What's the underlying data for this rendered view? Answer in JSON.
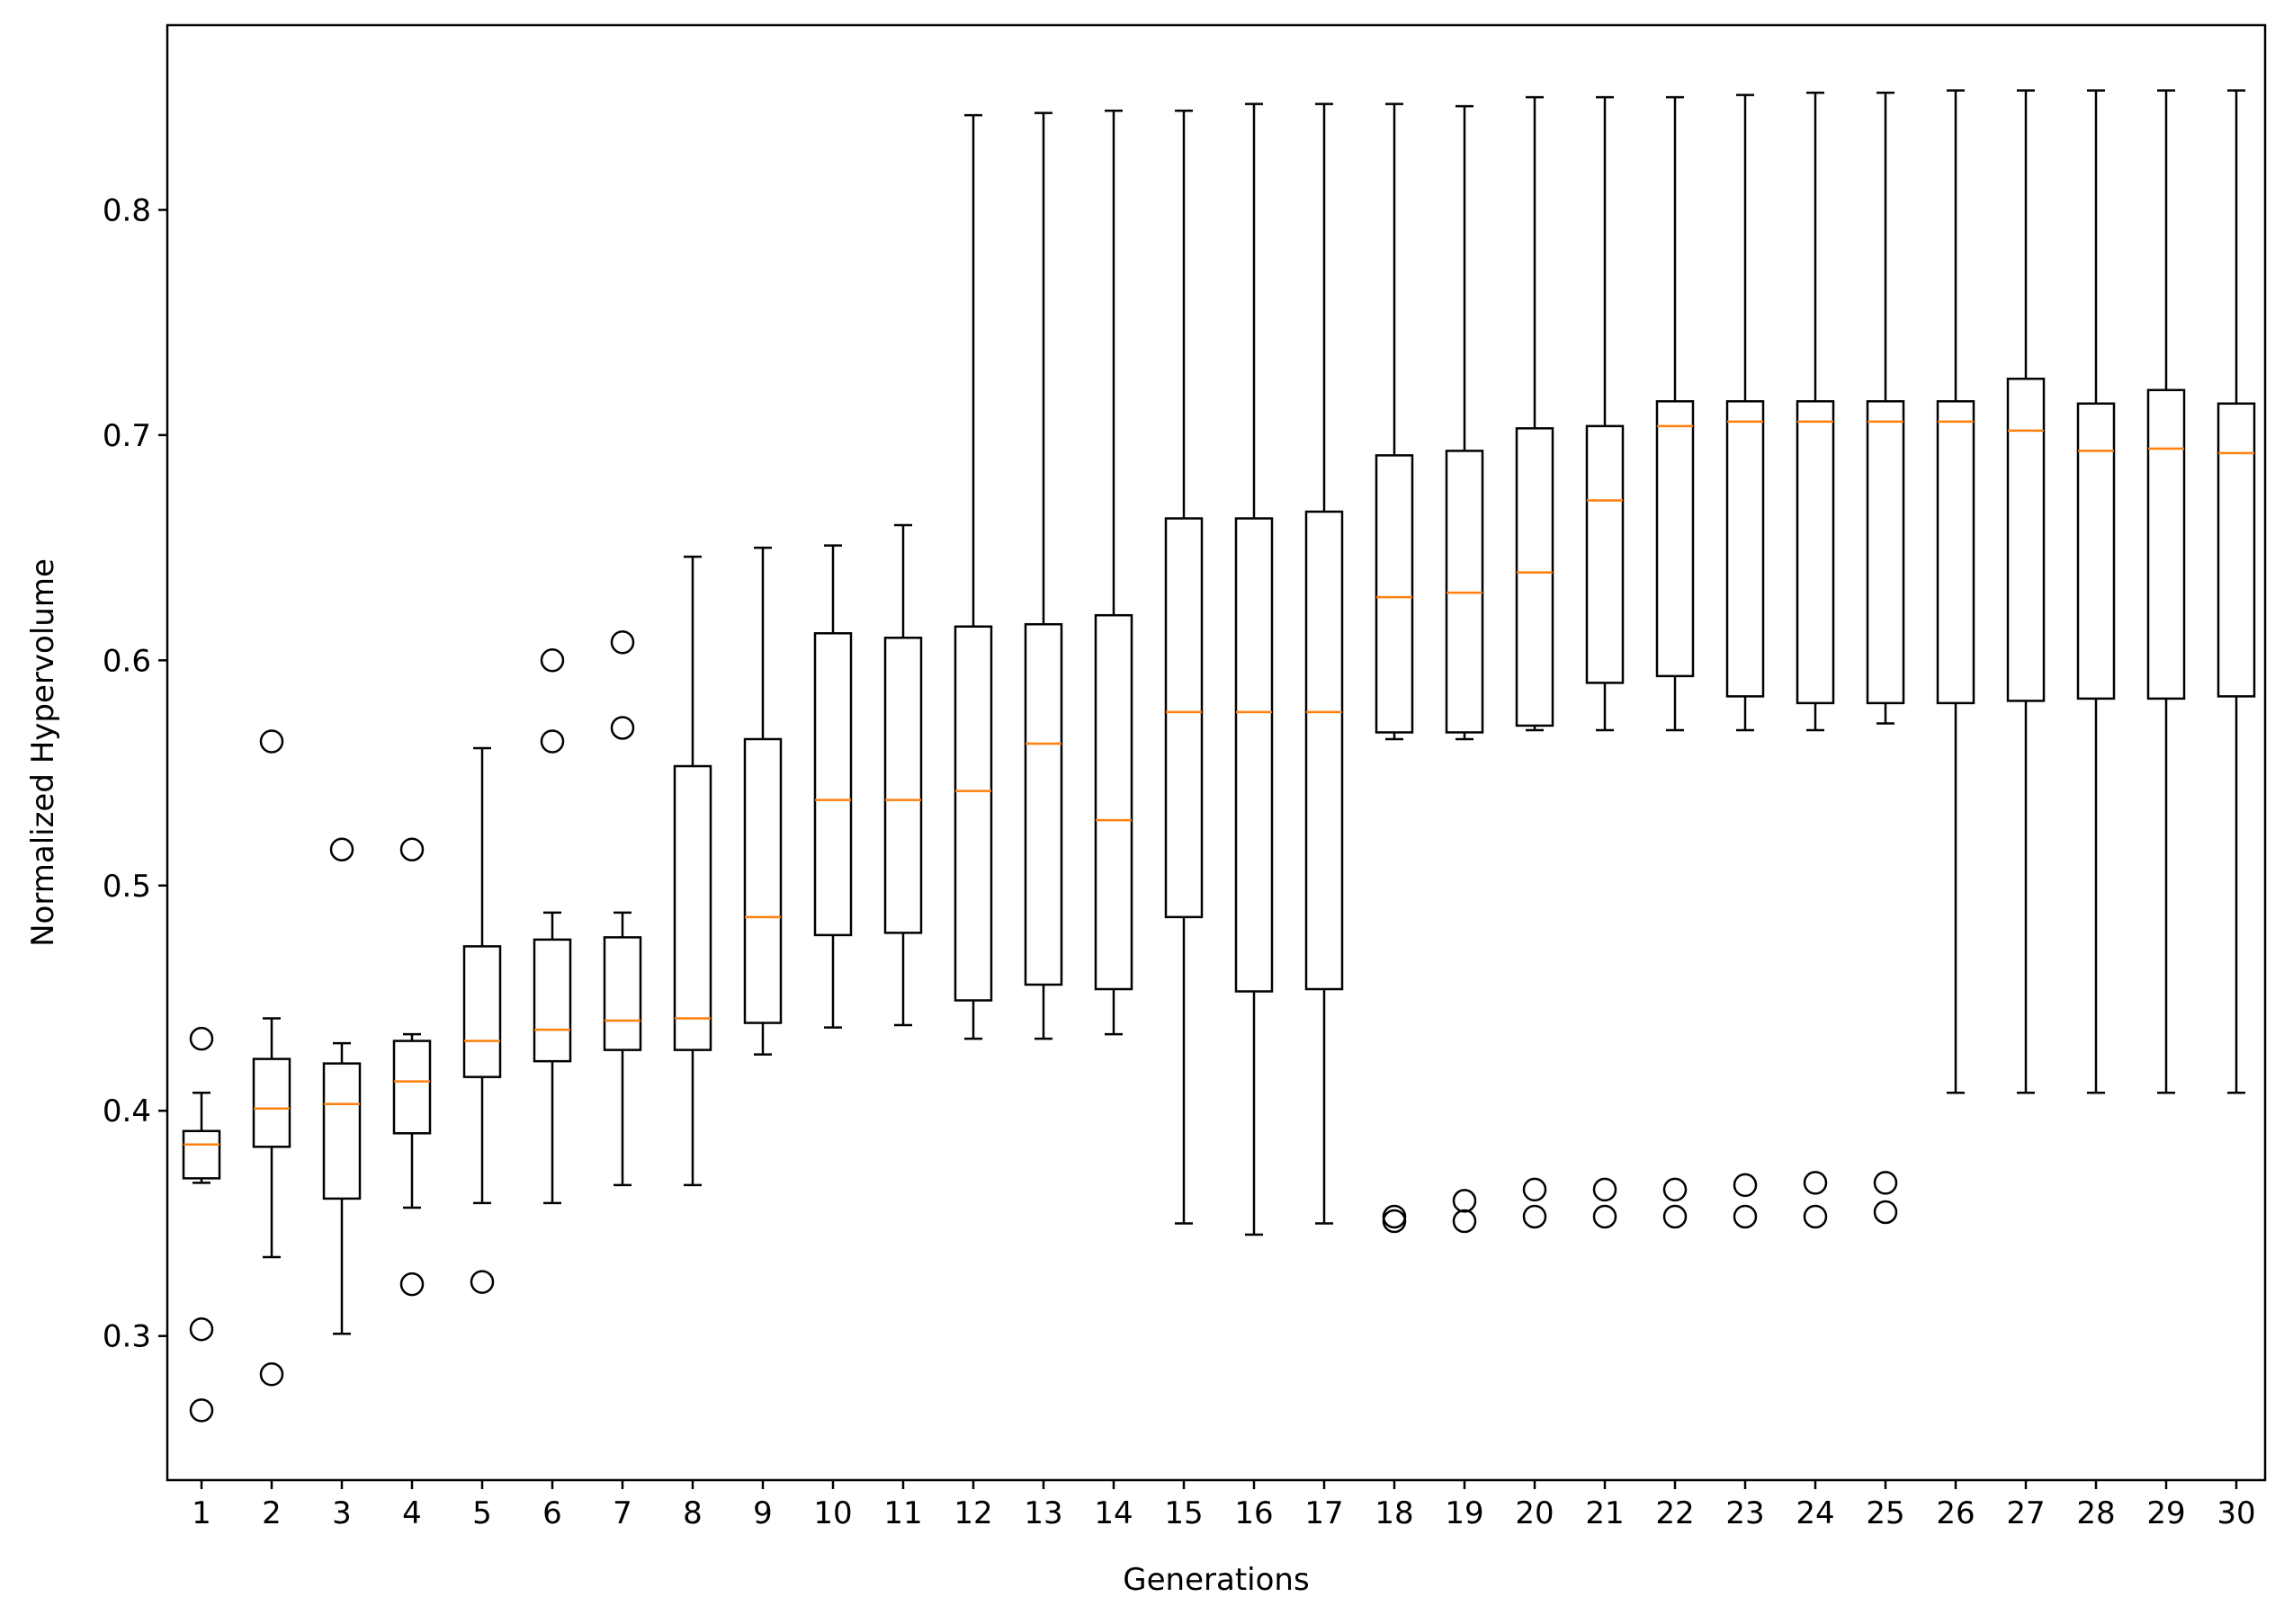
{
  "chart_data": {
    "type": "boxplot",
    "title": "",
    "xlabel": "Generations",
    "ylabel": "Normalized Hypervolume",
    "ylim": [
      0.236,
      0.882
    ],
    "y_ticks": [
      0.3,
      0.4,
      0.5,
      0.6,
      0.7,
      0.8
    ],
    "grid": false,
    "colors": {
      "box": "#000000",
      "median": "#ff7f0e",
      "background": "#ffffff"
    },
    "categories": [
      "1",
      "2",
      "3",
      "4",
      "5",
      "6",
      "7",
      "8",
      "9",
      "10",
      "11",
      "12",
      "13",
      "14",
      "15",
      "16",
      "17",
      "18",
      "19",
      "20",
      "21",
      "22",
      "23",
      "24",
      "25",
      "26",
      "27",
      "28",
      "29",
      "30"
    ],
    "boxes": [
      {
        "gen": "1",
        "whisker_low": 0.368,
        "q1": 0.37,
        "median": 0.385,
        "q3": 0.391,
        "whisker_high": 0.408,
        "outliers": [
          0.432,
          0.303,
          0.267
        ]
      },
      {
        "gen": "2",
        "whisker_low": 0.335,
        "q1": 0.384,
        "median": 0.401,
        "q3": 0.423,
        "whisker_high": 0.441,
        "outliers": [
          0.564,
          0.283
        ]
      },
      {
        "gen": "3",
        "whisker_low": 0.301,
        "q1": 0.361,
        "median": 0.403,
        "q3": 0.421,
        "whisker_high": 0.43,
        "outliers": [
          0.516
        ]
      },
      {
        "gen": "4",
        "whisker_low": 0.357,
        "q1": 0.39,
        "median": 0.413,
        "q3": 0.431,
        "whisker_high": 0.434,
        "outliers": [
          0.516,
          0.323
        ]
      },
      {
        "gen": "5",
        "whisker_low": 0.359,
        "q1": 0.415,
        "median": 0.431,
        "q3": 0.473,
        "whisker_high": 0.561,
        "outliers": [
          0.324
        ]
      },
      {
        "gen": "6",
        "whisker_low": 0.359,
        "q1": 0.422,
        "median": 0.436,
        "q3": 0.476,
        "whisker_high": 0.488,
        "outliers": [
          0.6,
          0.564
        ]
      },
      {
        "gen": "7",
        "whisker_low": 0.367,
        "q1": 0.427,
        "median": 0.44,
        "q3": 0.477,
        "whisker_high": 0.488,
        "outliers": [
          0.608,
          0.57
        ]
      },
      {
        "gen": "8",
        "whisker_low": 0.367,
        "q1": 0.427,
        "median": 0.441,
        "q3": 0.553,
        "whisker_high": 0.646,
        "outliers": []
      },
      {
        "gen": "9",
        "whisker_low": 0.425,
        "q1": 0.439,
        "median": 0.486,
        "q3": 0.565,
        "whisker_high": 0.65,
        "outliers": []
      },
      {
        "gen": "10",
        "whisker_low": 0.437,
        "q1": 0.478,
        "median": 0.538,
        "q3": 0.612,
        "whisker_high": 0.651,
        "outliers": []
      },
      {
        "gen": "11",
        "whisker_low": 0.438,
        "q1": 0.479,
        "median": 0.538,
        "q3": 0.61,
        "whisker_high": 0.66,
        "outliers": []
      },
      {
        "gen": "12",
        "whisker_low": 0.432,
        "q1": 0.449,
        "median": 0.542,
        "q3": 0.615,
        "whisker_high": 0.842,
        "outliers": []
      },
      {
        "gen": "13",
        "whisker_low": 0.432,
        "q1": 0.456,
        "median": 0.563,
        "q3": 0.616,
        "whisker_high": 0.843,
        "outliers": []
      },
      {
        "gen": "14",
        "whisker_low": 0.434,
        "q1": 0.454,
        "median": 0.529,
        "q3": 0.62,
        "whisker_high": 0.844,
        "outliers": []
      },
      {
        "gen": "15",
        "whisker_low": 0.35,
        "q1": 0.486,
        "median": 0.577,
        "q3": 0.663,
        "whisker_high": 0.844,
        "outliers": []
      },
      {
        "gen": "16",
        "whisker_low": 0.345,
        "q1": 0.453,
        "median": 0.577,
        "q3": 0.663,
        "whisker_high": 0.847,
        "outliers": []
      },
      {
        "gen": "17",
        "whisker_low": 0.35,
        "q1": 0.454,
        "median": 0.577,
        "q3": 0.666,
        "whisker_high": 0.847,
        "outliers": []
      },
      {
        "gen": "18",
        "whisker_low": 0.565,
        "q1": 0.568,
        "median": 0.628,
        "q3": 0.691,
        "whisker_high": 0.847,
        "outliers": [
          0.353,
          0.351
        ]
      },
      {
        "gen": "19",
        "whisker_low": 0.565,
        "q1": 0.568,
        "median": 0.63,
        "q3": 0.693,
        "whisker_high": 0.846,
        "outliers": [
          0.36,
          0.351
        ]
      },
      {
        "gen": "20",
        "whisker_low": 0.569,
        "q1": 0.571,
        "median": 0.639,
        "q3": 0.703,
        "whisker_high": 0.85,
        "outliers": [
          0.365,
          0.353
        ]
      },
      {
        "gen": "21",
        "whisker_low": 0.569,
        "q1": 0.59,
        "median": 0.671,
        "q3": 0.704,
        "whisker_high": 0.85,
        "outliers": [
          0.365,
          0.353
        ]
      },
      {
        "gen": "22",
        "whisker_low": 0.569,
        "q1": 0.593,
        "median": 0.704,
        "q3": 0.715,
        "whisker_high": 0.85,
        "outliers": [
          0.365,
          0.353
        ]
      },
      {
        "gen": "23",
        "whisker_low": 0.569,
        "q1": 0.584,
        "median": 0.706,
        "q3": 0.715,
        "whisker_high": 0.851,
        "outliers": [
          0.367,
          0.353
        ]
      },
      {
        "gen": "24",
        "whisker_low": 0.569,
        "q1": 0.581,
        "median": 0.706,
        "q3": 0.715,
        "whisker_high": 0.852,
        "outliers": [
          0.368,
          0.353
        ]
      },
      {
        "gen": "25",
        "whisker_low": 0.572,
        "q1": 0.581,
        "median": 0.706,
        "q3": 0.715,
        "whisker_high": 0.852,
        "outliers": [
          0.368,
          0.355
        ]
      },
      {
        "gen": "26",
        "whisker_low": 0.408,
        "q1": 0.581,
        "median": 0.706,
        "q3": 0.715,
        "whisker_high": 0.853,
        "outliers": []
      },
      {
        "gen": "27",
        "whisker_low": 0.408,
        "q1": 0.582,
        "median": 0.702,
        "q3": 0.725,
        "whisker_high": 0.853,
        "outliers": []
      },
      {
        "gen": "28",
        "whisker_low": 0.408,
        "q1": 0.583,
        "median": 0.693,
        "q3": 0.714,
        "whisker_high": 0.853,
        "outliers": []
      },
      {
        "gen": "29",
        "whisker_low": 0.408,
        "q1": 0.583,
        "median": 0.694,
        "q3": 0.72,
        "whisker_high": 0.853,
        "outliers": []
      },
      {
        "gen": "30",
        "whisker_low": 0.408,
        "q1": 0.584,
        "median": 0.692,
        "q3": 0.714,
        "whisker_high": 0.853,
        "outliers": []
      }
    ]
  }
}
